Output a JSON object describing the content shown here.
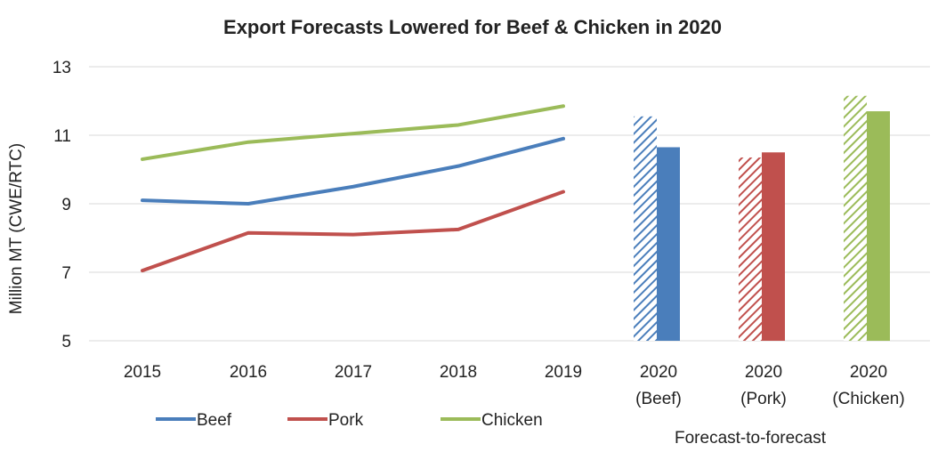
{
  "chart_data": {
    "type": "line",
    "title": "Export Forecasts Lowered for Beef & Chicken in 2020",
    "ylabel": "Million MT (CWE/RTC)",
    "xlabel": "",
    "ylim": [
      5,
      13
    ],
    "yticks": [
      5,
      7,
      9,
      11,
      13
    ],
    "grid": true,
    "legend_position": "bottom-left",
    "categories": [
      "2015",
      "2016",
      "2017",
      "2018",
      "2019"
    ],
    "series": [
      {
        "name": "Beef",
        "color": "#4a7ebb",
        "values": [
          9.1,
          9.0,
          9.5,
          10.1,
          10.9
        ]
      },
      {
        "name": "Pork",
        "color": "#c0504d",
        "values": [
          7.05,
          8.15,
          8.1,
          8.25,
          9.35
        ]
      },
      {
        "name": "Chicken",
        "color": "#9bbb59",
        "values": [
          10.3,
          10.8,
          11.05,
          11.3,
          11.85
        ]
      }
    ],
    "forecast_bars": {
      "group_label": "Forecast-to-forecast",
      "groups": [
        {
          "label_line1": "2020",
          "label_line2": "(Beef)",
          "color": "#4a7ebb",
          "previous": 11.55,
          "current": 10.65
        },
        {
          "label_line1": "2020",
          "label_line2": "(Pork)",
          "color": "#c0504d",
          "previous": 10.35,
          "current": 10.5
        },
        {
          "label_line1": "2020",
          "label_line2": "(Chicken)",
          "color": "#9bbb59",
          "previous": 12.15,
          "current": 11.7
        }
      ]
    }
  }
}
